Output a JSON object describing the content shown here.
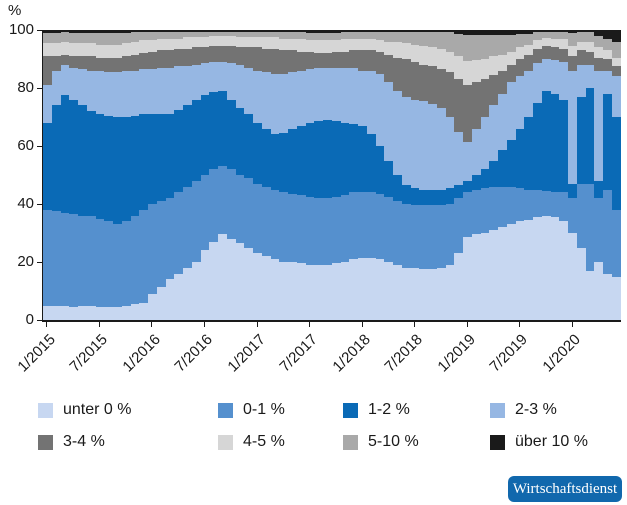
{
  "chart_data": {
    "type": "area",
    "stacked": true,
    "title": "",
    "xlabel": "",
    "ylabel": "%",
    "ylim": [
      0,
      100
    ],
    "y_ticks": [
      0,
      20,
      40,
      60,
      80,
      100
    ],
    "grid": false,
    "legend_position": "bottom",
    "x_tick_labels": [
      "1/2015",
      "7/2015",
      "1/2016",
      "7/2016",
      "1/2017",
      "7/2017",
      "1/2018",
      "7/2018",
      "1/2019",
      "7/2019",
      "1/2020"
    ],
    "months": [
      "1/2015",
      "2/2015",
      "3/2015",
      "4/2015",
      "5/2015",
      "6/2015",
      "7/2015",
      "8/2015",
      "9/2015",
      "10/2015",
      "11/2015",
      "12/2015",
      "1/2016",
      "2/2016",
      "3/2016",
      "4/2016",
      "5/2016",
      "6/2016",
      "7/2016",
      "8/2016",
      "9/2016",
      "10/2016",
      "11/2016",
      "12/2016",
      "1/2017",
      "2/2017",
      "3/2017",
      "4/2017",
      "5/2017",
      "6/2017",
      "7/2017",
      "8/2017",
      "9/2017",
      "10/2017",
      "11/2017",
      "12/2017",
      "1/2018",
      "2/2018",
      "3/2018",
      "4/2018",
      "5/2018",
      "6/2018",
      "7/2018",
      "8/2018",
      "9/2018",
      "10/2018",
      "11/2018",
      "12/2018",
      "1/2019",
      "2/2019",
      "3/2019",
      "4/2019",
      "5/2019",
      "6/2019",
      "7/2019",
      "8/2019",
      "9/2019",
      "10/2019",
      "11/2019",
      "12/2019",
      "1/2020",
      "2/2020",
      "3/2020",
      "4/2020",
      "5/2020",
      "6/2020"
    ],
    "series": [
      {
        "name": "unter 0 %",
        "color": "#c7d7f1",
        "values": [
          5,
          5,
          5,
          4.5,
          5,
          5,
          4.5,
          4.5,
          4.5,
          5,
          5.5,
          6,
          9,
          11.5,
          14,
          16,
          18,
          20,
          24,
          27,
          29.5,
          28,
          26.5,
          25,
          23,
          22,
          21,
          20,
          20,
          19.5,
          19,
          19,
          19,
          19.5,
          20,
          21,
          21.5,
          21.5,
          21,
          20,
          19,
          18,
          17.8,
          17.5,
          17.5,
          18,
          19,
          23,
          28.5,
          29.5,
          30,
          31,
          32,
          33,
          34,
          34.5,
          35.5,
          36,
          35.5,
          34,
          30,
          25,
          17,
          20,
          16,
          15
        ]
      },
      {
        "name": "0-1 %",
        "color": "#5590ce",
        "values": [
          33,
          32.5,
          32,
          32,
          31,
          31,
          30.5,
          29.5,
          28.5,
          29,
          30.5,
          32,
          31,
          29.5,
          28,
          28,
          28,
          28,
          26,
          25,
          23.5,
          24,
          23.5,
          24,
          24,
          24,
          24,
          24,
          23.5,
          23.5,
          23.5,
          23,
          23,
          23,
          23,
          23,
          22.5,
          22.5,
          22.5,
          22.5,
          22,
          22,
          21.9,
          22,
          22,
          21.5,
          21,
          19,
          15.5,
          15.5,
          15.5,
          15,
          14,
          13,
          11.5,
          10.5,
          9.5,
          8.5,
          8.5,
          10,
          12,
          22,
          30,
          22,
          29,
          23
        ]
      },
      {
        "name": "1-2 %",
        "color": "#0a6ab6",
        "values": [
          30,
          36.5,
          40.5,
          39.5,
          38,
          36,
          36,
          36.5,
          37,
          36,
          34.5,
          33,
          31,
          30,
          29,
          28.5,
          28,
          28,
          27.5,
          26.5,
          26,
          24,
          23,
          22,
          21,
          20,
          19,
          20.5,
          22.5,
          24,
          25.5,
          26.5,
          27,
          26,
          25,
          23.5,
          23,
          20,
          16.5,
          12.5,
          9,
          6.5,
          5.8,
          5.5,
          5.5,
          5.5,
          5.5,
          4.5,
          4,
          5,
          6.5,
          9,
          12.5,
          16,
          20.5,
          25,
          30,
          34.5,
          34,
          32,
          5,
          30,
          33,
          6,
          33,
          32
        ]
      },
      {
        "name": "2-3 %",
        "color": "#96b7e3",
        "values": [
          13,
          12,
          10.5,
          11,
          12.5,
          14,
          15,
          15,
          15.5,
          16,
          15.5,
          15.5,
          15.5,
          16,
          16,
          15,
          13.5,
          12,
          11,
          10.5,
          10,
          12.5,
          15,
          16,
          18,
          19.5,
          21,
          20.5,
          19.5,
          19,
          18.5,
          18.5,
          18,
          18.5,
          19,
          19.5,
          19,
          22,
          25,
          27,
          29,
          30.5,
          30.5,
          30.5,
          29.5,
          28,
          24.5,
          18.5,
          13.5,
          16,
          18,
          19,
          19.5,
          20,
          18,
          16,
          13.5,
          11,
          11.5,
          13,
          39,
          11,
          8,
          38,
          8,
          14
        ]
      },
      {
        "name": "3-4 %",
        "color": "#737373",
        "values": [
          10,
          5,
          3.5,
          4,
          4.5,
          5,
          4.5,
          5,
          5,
          5,
          5.5,
          5.5,
          6,
          6,
          6,
          6,
          6,
          6,
          5.5,
          5.5,
          5.5,
          6,
          6,
          7,
          8,
          8,
          8.5,
          8,
          7.5,
          6.5,
          6,
          5,
          5,
          5.5,
          5.5,
          6,
          7,
          7,
          7.5,
          9.5,
          11.5,
          13,
          13,
          12.5,
          13,
          13.5,
          15.5,
          18,
          19.5,
          16,
          13,
          10.5,
          8,
          6,
          6,
          5.5,
          5,
          4.5,
          4.5,
          4.5,
          5,
          5,
          4.5,
          4.5,
          4,
          3.5
        ]
      },
      {
        "name": "4-5 %",
        "color": "#d6d6d6",
        "values": [
          4.5,
          4.5,
          4.5,
          4.5,
          4.5,
          4.5,
          4.5,
          4.5,
          4.5,
          4.5,
          4.5,
          4.5,
          4,
          4,
          4,
          3.5,
          4,
          3.5,
          3.5,
          3.5,
          3.5,
          3.5,
          3.5,
          3.5,
          3.5,
          4,
          4,
          4,
          4,
          4.5,
          4,
          4.5,
          4.5,
          4,
          4.5,
          4,
          4,
          4,
          4,
          4.5,
          5.5,
          5.5,
          6,
          6.5,
          6.5,
          7,
          7,
          8,
          8.5,
          7.5,
          7,
          6.5,
          5.5,
          4.5,
          4,
          3.5,
          3,
          2.7,
          3,
          3.3,
          3.5,
          3,
          3.3,
          3.5,
          3,
          3
        ]
      },
      {
        "name": "5-10 %",
        "color": "#a9a9a9",
        "values": [
          3.5,
          3.5,
          3.2,
          3.5,
          3.5,
          3.5,
          4,
          4,
          4,
          3.6,
          3.2,
          2.8,
          2.8,
          2.4,
          2.4,
          2.4,
          2,
          2,
          2,
          1.5,
          1.5,
          1.5,
          1.9,
          1.9,
          1.9,
          1.9,
          1.9,
          2.3,
          2.3,
          2.2,
          2.6,
          2.5,
          2.5,
          2.6,
          2.2,
          2.2,
          2.3,
          2.3,
          2.8,
          3.3,
          3.3,
          3.8,
          4.3,
          4.9,
          5.4,
          5.9,
          6.8,
          7.8,
          8.8,
          8.7,
          8.2,
          7.2,
          6.8,
          5.9,
          4.6,
          3.8,
          2.7,
          2.3,
          2.4,
          2.6,
          4.5,
          3.2,
          3.4,
          4,
          4,
          5.5
        ]
      },
      {
        "name": "über 10 %",
        "color": "#1a1a1a",
        "values": [
          1,
          1,
          0.8,
          1,
          1,
          1,
          1,
          1,
          1,
          0.9,
          0.8,
          0.7,
          0.7,
          0.6,
          0.6,
          0.6,
          0.5,
          0.5,
          0.5,
          0.5,
          0.5,
          0.5,
          0.6,
          0.6,
          0.6,
          0.6,
          0.6,
          0.7,
          0.7,
          0.8,
          0.9,
          1,
          1,
          0.9,
          0.8,
          0.8,
          0.7,
          0.7,
          0.7,
          0.7,
          0.7,
          0.7,
          0.7,
          0.6,
          0.6,
          0.6,
          0.7,
          1.2,
          1.7,
          1.8,
          1.8,
          1.8,
          1.7,
          1.6,
          1.4,
          1.2,
          0.8,
          0.5,
          0.6,
          0.6,
          1,
          0.8,
          0.8,
          2,
          3,
          4
        ]
      }
    ]
  },
  "badge": {
    "label": "Wirtschaftsdienst",
    "bg": "#1168ad",
    "fg": "#ffffff"
  },
  "colors": {
    "axis": "#1a1a1a",
    "text": "#1a1a1a",
    "background": "#ffffff"
  }
}
